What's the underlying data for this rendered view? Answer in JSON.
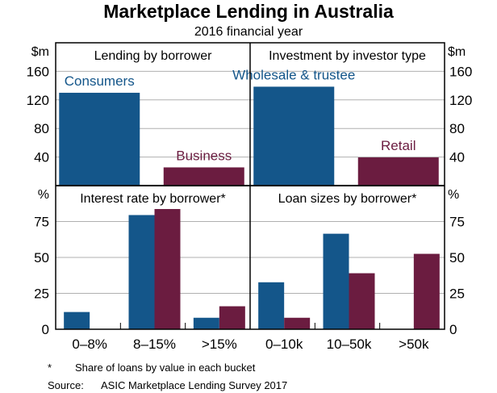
{
  "title": "Marketplace Lending in Australia",
  "subtitle": "2016 financial year",
  "colors": {
    "blue": "#14568A",
    "maroon": "#6B1C40",
    "grid": "#b0b0b0"
  },
  "footnote": {
    "marker": "*",
    "text": "Share of loans by value in each bucket"
  },
  "source": {
    "label": "Source:",
    "text": "ASIC Marketplace Lending Survey 2017"
  },
  "chart_data": [
    {
      "type": "bar",
      "title": "Lending by borrower",
      "ylabel": "$m",
      "ylim": [
        0,
        200
      ],
      "yticks": [
        40,
        80,
        120,
        160
      ],
      "grid": true,
      "categories": [
        "Consumers",
        "Business"
      ],
      "values": [
        130,
        25.5
      ],
      "bar_colors": [
        "blue",
        "maroon"
      ]
    },
    {
      "type": "bar",
      "title": "Investment by investor type",
      "ylabel": "$m",
      "ylim": [
        0,
        200
      ],
      "yticks": [
        40,
        80,
        120,
        160
      ],
      "grid": true,
      "categories": [
        "Wholesale & trustee",
        "Retail"
      ],
      "values": [
        138.5,
        39.5
      ],
      "bar_colors": [
        "blue",
        "maroon"
      ]
    },
    {
      "type": "bar",
      "title": "Interest rate by borrower*",
      "ylabel": "%",
      "ylim": [
        0,
        100
      ],
      "yticks": [
        0,
        25,
        50,
        75
      ],
      "grid": true,
      "categories": [
        "0–8%",
        "8–15%",
        ">15%"
      ],
      "series": [
        {
          "color": "blue",
          "values": [
            12,
            79.5,
            8
          ]
        },
        {
          "color": "maroon",
          "values": [
            0,
            83.7,
            16
          ]
        }
      ]
    },
    {
      "type": "bar",
      "title": "Loan sizes by borrower*",
      "ylabel": "%",
      "ylim": [
        0,
        100
      ],
      "yticks": [
        0,
        25,
        50,
        75
      ],
      "grid": true,
      "categories": [
        "0–10k",
        "10–50k",
        ">50k"
      ],
      "series": [
        {
          "color": "blue",
          "values": [
            32.7,
            66.5,
            0
          ]
        },
        {
          "color": "maroon",
          "values": [
            8,
            39,
            52.5
          ]
        }
      ]
    }
  ]
}
